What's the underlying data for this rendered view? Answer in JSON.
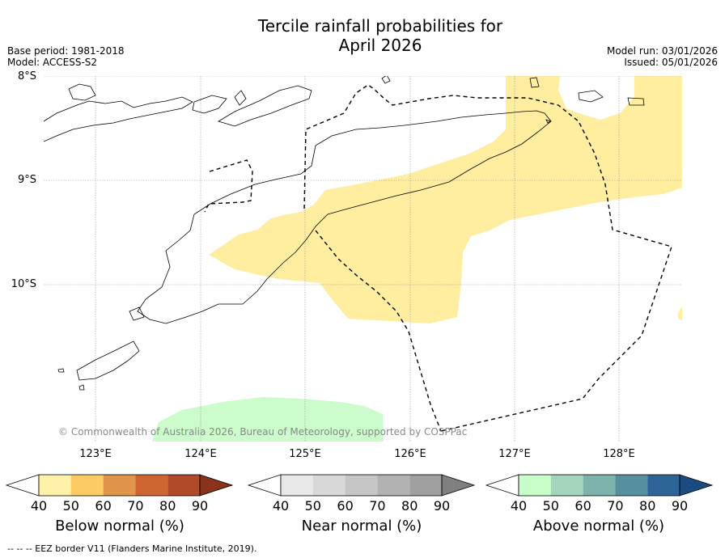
{
  "title": {
    "line1": "Tercile rainfall probabilities for",
    "line2": "April 2026"
  },
  "base_period": "Base period: 1981-2018",
  "model": "Model: ACCESS-S2",
  "model_run": "Model run: 03/01/2026",
  "issued": "Issued: 05/01/2026",
  "lat_labels": [
    "8°S",
    "9°S",
    "10°S"
  ],
  "lon_labels": [
    "123°E",
    "124°E",
    "125°E",
    "126°E",
    "127°E",
    "128°E"
  ],
  "credit": "© Commonwealth of Australia 2026, Bureau of Meteorology, supported by COSPPac",
  "footnote": "--  --  -- EEZ border V11 (Flanders Marine Institute, 2019).",
  "colorbars": [
    {
      "label": "Below normal (%)",
      "ticks": [
        "40",
        "50",
        "60",
        "70",
        "80",
        "90"
      ],
      "colors": [
        "#fff1a8",
        "#fdcb65",
        "#e0954a",
        "#cf6530",
        "#b04a27",
        "#8b321a"
      ]
    },
    {
      "label": "Near normal (%)",
      "ticks": [
        "40",
        "50",
        "60",
        "70",
        "80",
        "90"
      ],
      "colors": [
        "#e8e8e8",
        "#d8d8d8",
        "#c6c6c6",
        "#b2b2b2",
        "#a0a0a0",
        "#808080"
      ]
    },
    {
      "label": "Above normal (%)",
      "ticks": [
        "40",
        "50",
        "60",
        "70",
        "80",
        "90"
      ],
      "colors": [
        "#c8fdc8",
        "#a3d5bc",
        "#7db2ad",
        "#56909c",
        "#2e6497",
        "#1a4b80"
      ]
    }
  ],
  "colors": {
    "below_50": "#ffeda0",
    "above_40": "#ccfccc",
    "grid": "#999999"
  }
}
